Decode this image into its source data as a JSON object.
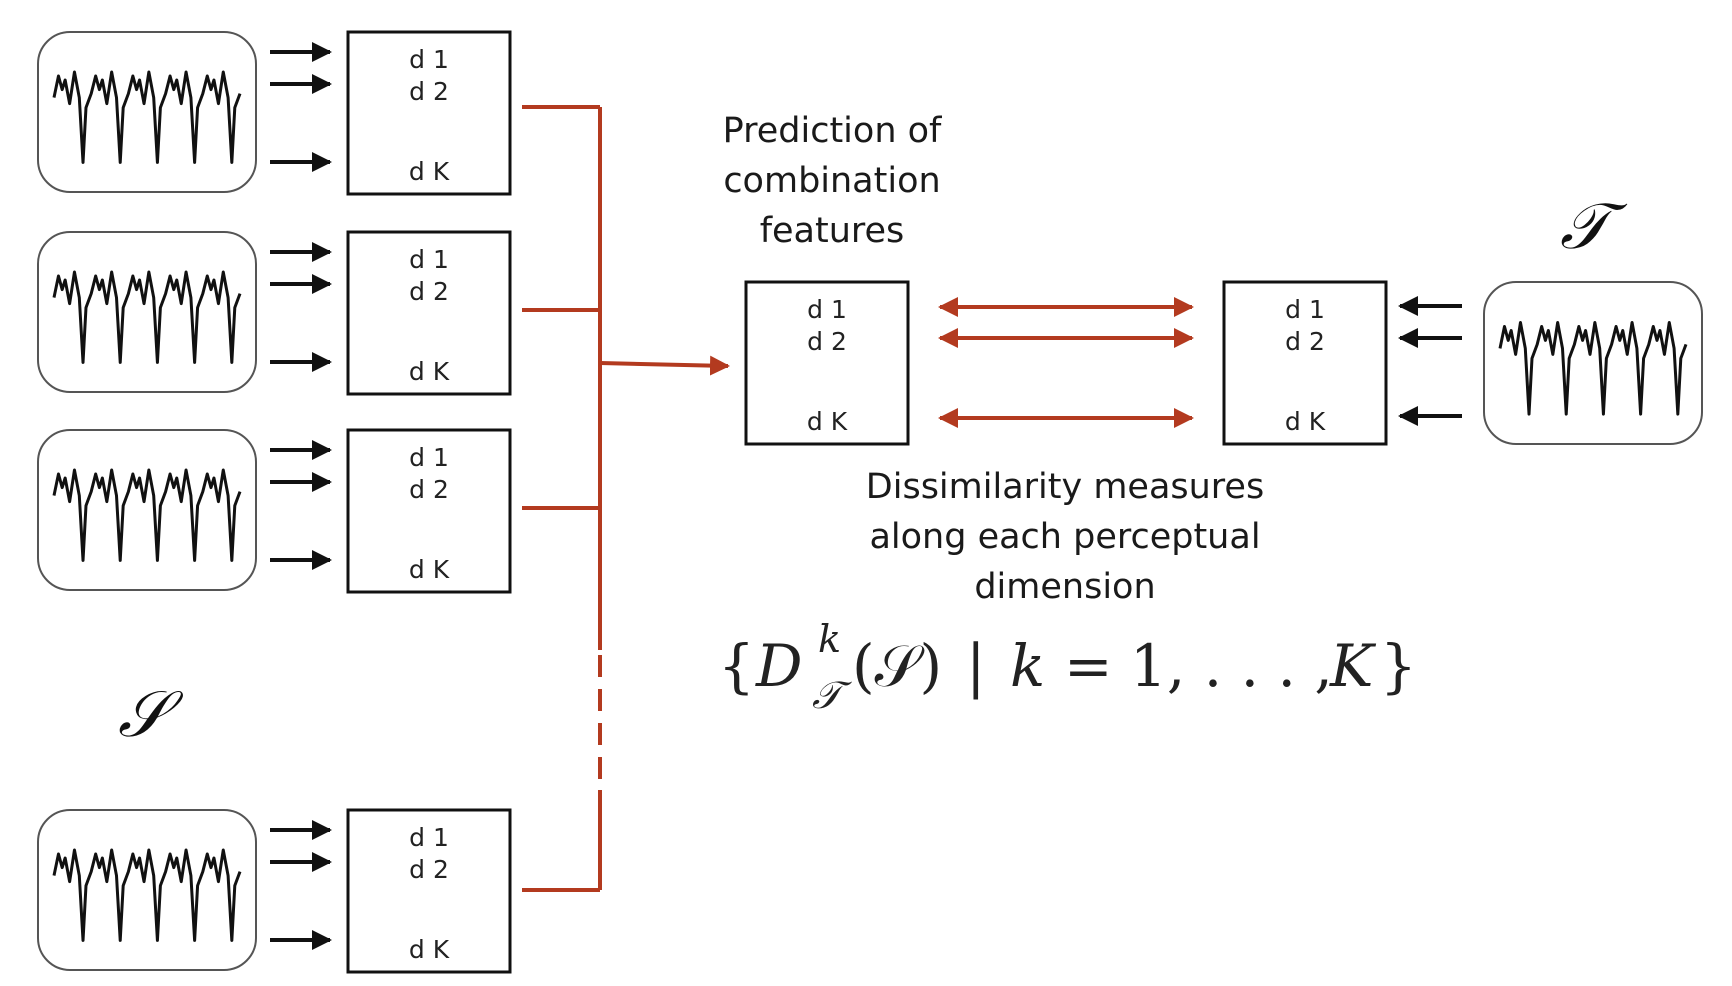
{
  "feature_box": {
    "d1": "d 1",
    "d2": "d 2",
    "dK": "d K"
  },
  "source_symbol": "𝒮",
  "target_symbol": "𝒯",
  "prediction_label": [
    "Prediction of",
    "combination",
    "features"
  ],
  "dissimilarity_label": [
    "Dissimilarity measures",
    "along each perceptual",
    "dimension"
  ],
  "formula": {
    "open": "{",
    "D": "D",
    "sup": "k",
    "sub": "𝒯",
    "arg": "(𝒮)",
    "bar": "|",
    "k": "k",
    "eq": "=",
    "range": "1, . . . ,",
    "K": "K",
    "close": "}"
  },
  "colors": {
    "connector": "#b33a1f",
    "ink": "#111111",
    "background": "#ffffff"
  }
}
